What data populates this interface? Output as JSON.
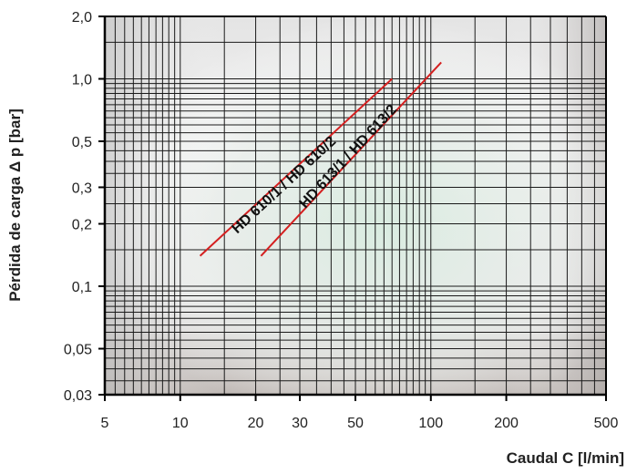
{
  "chart_data": {
    "type": "line",
    "xlabel": "Caudal C [l/min]",
    "ylabel": "Pérdida de carga Δ p [bar]",
    "x_scale": "log",
    "y_scale": "log",
    "xlim": [
      5,
      500
    ],
    "ylim": [
      0.03,
      2.0
    ],
    "x_ticks": [
      {
        "value": 5,
        "label": "5"
      },
      {
        "value": 10,
        "label": "10"
      },
      {
        "value": 20,
        "label": "20"
      },
      {
        "value": 30,
        "label": "30"
      },
      {
        "value": 50,
        "label": "50"
      },
      {
        "value": 100,
        "label": "100"
      },
      {
        "value": 200,
        "label": "200"
      },
      {
        "value": 500,
        "label": "500"
      }
    ],
    "y_ticks": [
      {
        "value": 2.0,
        "label": "2,0"
      },
      {
        "value": 1.0,
        "label": "1,0"
      },
      {
        "value": 0.5,
        "label": "0,5"
      },
      {
        "value": 0.3,
        "label": "0,3"
      },
      {
        "value": 0.2,
        "label": "0,2"
      },
      {
        "value": 0.1,
        "label": "0,1"
      },
      {
        "value": 0.05,
        "label": "0,05"
      },
      {
        "value": 0.03,
        "label": "0,03"
      }
    ],
    "grid": true,
    "series": [
      {
        "name": "HD 610/1 / HD 610/2",
        "color": "#d42020",
        "x": [
          12,
          70
        ],
        "y": [
          0.14,
          1.0
        ]
      },
      {
        "name": "HD 613/1 / HD 613/2",
        "color": "#d42020",
        "x": [
          21,
          110
        ],
        "y": [
          0.14,
          1.2
        ]
      }
    ]
  }
}
